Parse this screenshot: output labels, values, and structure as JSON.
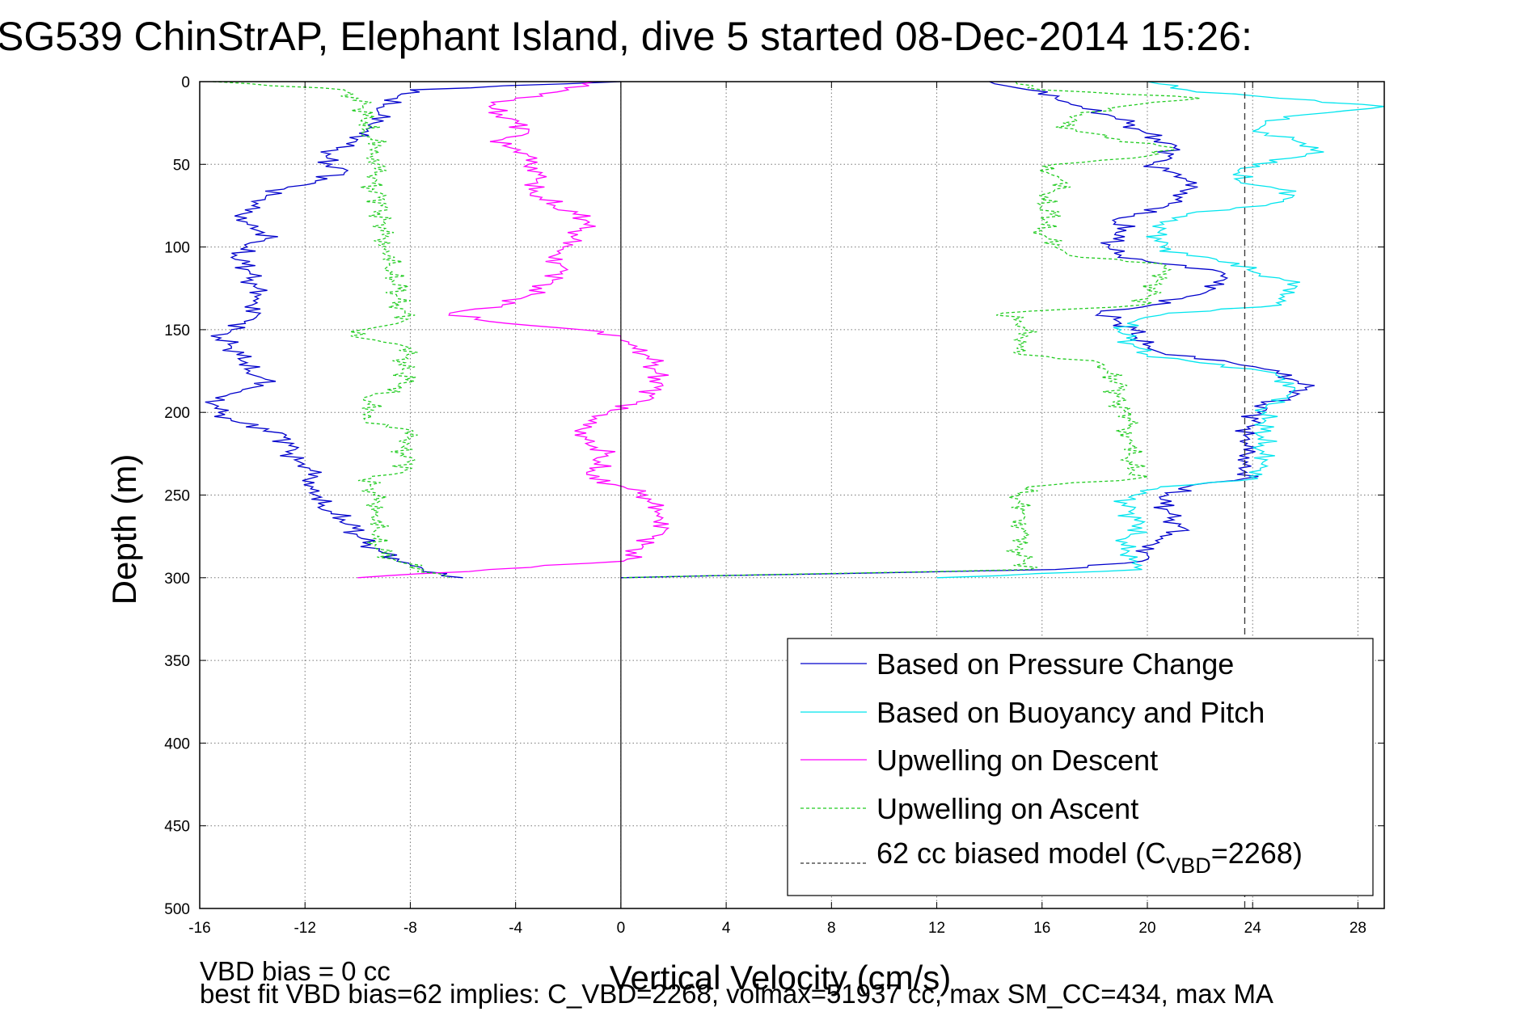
{
  "chart_data": {
    "type": "line",
    "title": "SG539 ChinStrAP, Elephant Island, dive 5 started 08-Dec-2014 15:26:",
    "xlabel": "Vertical Velocity (cm/s)",
    "ylabel": "Depth (m)",
    "xlim": [
      -16,
      29
    ],
    "ylim": [
      0,
      500
    ],
    "y_reversed": true,
    "x_ticks": [
      -16,
      -12,
      -8,
      -4,
      0,
      4,
      8,
      12,
      16,
      20,
      24,
      28
    ],
    "y_ticks": [
      0,
      50,
      100,
      150,
      200,
      250,
      300,
      350,
      400,
      450,
      500
    ],
    "grid": true,
    "legend_position": "bottom-right",
    "footnotes": [
      "VBD bias = 0 cc",
      "best fit VBD bias=62 implies: C_VBD=2268, volmax=51937 cc, max SM_CC=434, max MA"
    ],
    "series": [
      {
        "name": "Based on Pressure Change",
        "color": "#0000cc",
        "style": "solid",
        "depth": [
          0,
          5,
          10,
          15,
          20,
          25,
          30,
          35,
          40,
          45,
          50,
          55,
          60,
          65,
          70,
          75,
          80,
          85,
          90,
          95,
          100,
          105,
          110,
          115,
          120,
          125,
          130,
          135,
          140,
          145,
          150,
          155,
          160,
          165,
          170,
          175,
          180,
          185,
          190,
          195,
          200,
          205,
          210,
          215,
          220,
          225,
          230,
          235,
          240,
          245,
          250,
          255,
          260,
          265,
          270,
          275,
          280,
          285,
          290,
          295,
          300
        ],
        "descent": [
          0,
          -8,
          -8.5,
          -9,
          -9.2,
          -9.4,
          -9.6,
          -10,
          -10.8,
          -11.2,
          -11,
          -10.5,
          -11.6,
          -12.8,
          -13.5,
          -14,
          -14.4,
          -14.2,
          -13.8,
          -13.5,
          -14.2,
          -14.6,
          -14.4,
          -14.1,
          -14,
          -13.8,
          -13.9,
          -14,
          -13.7,
          -14.3,
          -14.8,
          -15.2,
          -14.8,
          -14.6,
          -14.2,
          -14.1,
          -13.5,
          -14,
          -15,
          -15.5,
          -15.3,
          -14.8,
          -13.4,
          -12.8,
          -12.6,
          -12.5,
          -12.2,
          -11.8,
          -11.8,
          -11.7,
          -11.6,
          -11.5,
          -11,
          -10.5,
          -10.2,
          -10,
          -9.5,
          -9,
          -8.5,
          -7.5,
          -6
        ],
        "ascent": [
          14,
          15.5,
          16.5,
          17.5,
          18.5,
          19.2,
          19.8,
          20.5,
          21,
          20.8,
          20.2,
          21,
          21.5,
          21.6,
          21.3,
          20.8,
          19.5,
          18.8,
          19.2,
          18.7,
          18.5,
          19,
          20.5,
          22.8,
          22.9,
          22.6,
          21.5,
          20.2,
          18.2,
          18.9,
          19.4,
          19.6,
          20.1,
          20.7,
          23.2,
          25,
          25.5,
          26,
          25.6,
          24.5,
          24.2,
          24,
          23.9,
          23.8,
          23.7,
          23.8,
          23.8,
          23.6,
          23.7,
          21.5,
          20.8,
          20.5,
          20.8,
          21,
          21.4,
          20.5,
          20.2,
          20,
          19.8,
          16.5,
          0
        ]
      },
      {
        "name": "Based on Buoyancy and Pitch",
        "color": "#00e5ee",
        "style": "solid",
        "depth": [
          0,
          5,
          10,
          15,
          20,
          25,
          30,
          35,
          40,
          45,
          50,
          55,
          60,
          65,
          70,
          75,
          80,
          85,
          90,
          95,
          100,
          105,
          110,
          115,
          120,
          125,
          130,
          135,
          140,
          145,
          150,
          155,
          160,
          165,
          170,
          175,
          180,
          185,
          190,
          195,
          200,
          205,
          210,
          215,
          220,
          225,
          230,
          235,
          240,
          245,
          250,
          255,
          260,
          265,
          270,
          275,
          280,
          285,
          290,
          295,
          300
        ],
        "ascent": [
          20,
          21.5,
          25,
          29,
          26,
          24.5,
          24,
          25.5,
          26.5,
          26,
          24,
          23.5,
          23.5,
          25,
          25.5,
          24.5,
          21.5,
          20.5,
          20.5,
          20.5,
          20.5,
          21.5,
          23.5,
          24,
          25.2,
          25.6,
          25.2,
          25.1,
          20.8,
          19.5,
          19,
          19.2,
          19.5,
          20,
          22,
          24.4,
          25.2,
          25.6,
          25.3,
          24.6,
          24.5,
          24.5,
          24.3,
          24.4,
          24.4,
          24.3,
          24.4,
          24.3,
          24.2,
          20.5,
          19.5,
          19.2,
          19.3,
          19.5,
          19.8,
          19.3,
          19,
          19.2,
          19.6,
          19.8,
          12
        ]
      },
      {
        "name": "Upwelling on Descent",
        "color": "#ff00ff",
        "style": "solid",
        "depth": [
          0,
          5,
          10,
          15,
          20,
          25,
          30,
          35,
          40,
          45,
          50,
          55,
          60,
          65,
          70,
          75,
          80,
          85,
          90,
          95,
          100,
          105,
          110,
          115,
          120,
          125,
          130,
          135,
          140,
          145,
          150,
          155,
          160,
          165,
          170,
          175,
          180,
          185,
          190,
          195,
          200,
          205,
          210,
          215,
          220,
          225,
          230,
          235,
          240,
          245,
          250,
          255,
          260,
          265,
          270,
          275,
          280,
          285,
          290,
          295,
          300
        ],
        "values": [
          -1,
          -2,
          -4,
          -5,
          -4.5,
          -4,
          -3.5,
          -4.5,
          -4.2,
          -3.5,
          -3.5,
          -3,
          -3.2,
          -3.5,
          -3,
          -2.5,
          -1.8,
          -1.2,
          -1.5,
          -1.8,
          -2.2,
          -2.5,
          -2.3,
          -2.3,
          -2.6,
          -3,
          -3.6,
          -4.5,
          -6.5,
          -5,
          -1.5,
          0,
          0.6,
          0.9,
          1.2,
          1.3,
          1.5,
          1.3,
          1.1,
          0.6,
          -0.5,
          -1.2,
          -1.5,
          -1.3,
          -1.2,
          -0.6,
          -0.8,
          -1,
          -1.2,
          0.1,
          1,
          1.2,
          1.3,
          1.5,
          1.8,
          1.2,
          0.8,
          0.6,
          0.1,
          -5,
          -10
        ]
      },
      {
        "name": "Upwelling on Ascent",
        "color": "#22cc22",
        "style": "dashed",
        "depth": [
          0,
          5,
          10,
          15,
          20,
          25,
          30,
          35,
          40,
          45,
          50,
          55,
          60,
          65,
          70,
          75,
          80,
          85,
          90,
          95,
          100,
          105,
          110,
          115,
          120,
          125,
          130,
          135,
          140,
          145,
          150,
          155,
          160,
          165,
          170,
          175,
          180,
          185,
          190,
          195,
          200,
          205,
          210,
          215,
          220,
          225,
          230,
          235,
          240,
          245,
          250,
          255,
          260,
          265,
          270,
          275,
          280,
          285,
          290,
          295,
          300
        ],
        "descent": [
          -15.5,
          -10.5,
          -10,
          -9.8,
          -9.8,
          -9.6,
          -9.7,
          -9.5,
          -9.3,
          -9.4,
          -9.2,
          -9.4,
          -9.3,
          -9.4,
          -9.2,
          -9.1,
          -9.1,
          -9,
          -9.1,
          -9,
          -8.9,
          -8.9,
          -8.8,
          -8.7,
          -8.6,
          -8.5,
          -8.5,
          -8.4,
          -8.2,
          -8.3,
          -9.8,
          -9.9,
          -8.2,
          -8.1,
          -8.2,
          -8.3,
          -8.2,
          -8.3,
          -9.5,
          -9.6,
          -9.6,
          -9.7,
          -8.2,
          -8.1,
          -8.2,
          -8.2,
          -8.1,
          -8.2,
          -9.5,
          -9.5,
          -9.4,
          -9.3,
          -9.2,
          -9.4,
          -9.3,
          -9.2,
          -9.3,
          -9.1,
          -8.5,
          -7.5,
          -6.5
        ],
        "ascent": [
          15,
          16,
          22,
          19,
          17.5,
          16.8,
          17.3,
          19,
          21,
          20,
          16.5,
          16.2,
          16.8,
          16.5,
          16.2,
          16,
          16.3,
          16.2,
          16,
          16.2,
          16.5,
          17,
          20.5,
          20.6,
          20.4,
          20.3,
          20,
          19.8,
          14.5,
          15.2,
          15.3,
          15.2,
          15.3,
          15.2,
          18.2,
          18.5,
          18.8,
          18.9,
          18.8,
          19,
          19.2,
          19.3,
          19.2,
          19.3,
          19.4,
          19.3,
          19.4,
          19.5,
          19.6,
          15.5,
          15.2,
          15.1,
          15.2,
          15.3,
          15.2,
          15.3,
          15.1,
          15.2,
          15.3,
          15.5,
          0
        ]
      },
      {
        "name": "62 cc biased model (C",
        "name_sub": "VBD",
        "name_suffix": "=2268)",
        "color": "#333333",
        "style": "dashed",
        "x": 23.7,
        "depth_range": [
          0,
          500
        ]
      }
    ]
  }
}
